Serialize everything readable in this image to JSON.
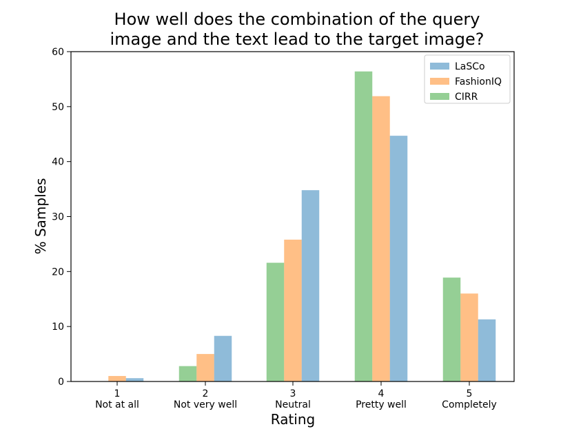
{
  "chart_data": {
    "type": "bar",
    "title_lines": [
      "How well does the combination of the query",
      "image and the text lead to the target image?"
    ],
    "xlabel": "Rating",
    "ylabel": "% Samples",
    "ylim": [
      0,
      60
    ],
    "yticks": [
      0,
      10,
      20,
      30,
      40,
      50,
      60
    ],
    "grid": false,
    "legend_position": "top-right",
    "categories": [
      {
        "num": "1",
        "label": "Not at all"
      },
      {
        "num": "2",
        "label": "Not very well"
      },
      {
        "num": "3",
        "label": "Neutral"
      },
      {
        "num": "4",
        "label": "Pretty well"
      },
      {
        "num": "5",
        "label": "Completely"
      }
    ],
    "series": [
      {
        "name": "LaSCo",
        "color": "#1f77b4",
        "values": [
          0.6,
          8.3,
          34.8,
          44.7,
          11.3
        ]
      },
      {
        "name": "FashionIQ",
        "color": "#ff7f0e",
        "values": [
          1.0,
          5.0,
          25.8,
          51.9,
          16.0
        ]
      },
      {
        "name": "CIRR",
        "color": "#2ca02c",
        "values": [
          0.0,
          2.8,
          21.6,
          56.4,
          18.9
        ]
      }
    ],
    "bar_order_left_to_right": [
      "CIRR",
      "FashionIQ",
      "LaSCo"
    ]
  }
}
